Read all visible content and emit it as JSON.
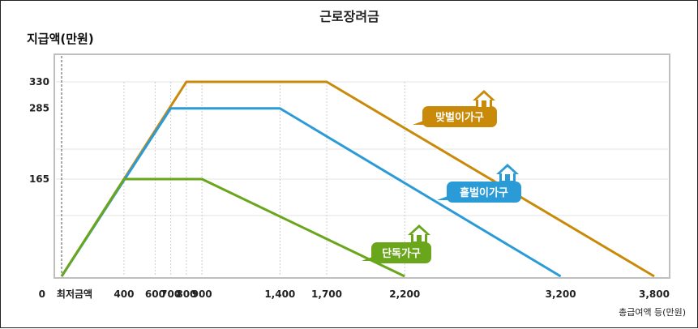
{
  "chart_data": {
    "type": "line",
    "title": "근로장려금",
    "ylabel": "지급액(만원)",
    "xlabel": "총급여액 등(만원)",
    "x_ticks": [
      {
        "value": 0,
        "label": "최저금액"
      },
      {
        "value": 400,
        "label": "400"
      },
      {
        "value": 600,
        "label": "600"
      },
      {
        "value": 700,
        "label": "700"
      },
      {
        "value": 800,
        "label": "800"
      },
      {
        "value": 900,
        "label": "900"
      },
      {
        "value": 1400,
        "label": "1,400"
      },
      {
        "value": 1700,
        "label": "1,700"
      },
      {
        "value": 2200,
        "label": "2,200"
      },
      {
        "value": 3200,
        "label": "3,200"
      },
      {
        "value": 3800,
        "label": "3,800"
      }
    ],
    "y_ticks": [
      {
        "value": 0,
        "label": "0"
      },
      {
        "value": 165,
        "label": "165"
      },
      {
        "value": 285,
        "label": "285"
      },
      {
        "value": 330,
        "label": "330"
      }
    ],
    "xlim": [
      0,
      3850
    ],
    "ylim": [
      0,
      375
    ],
    "grid": true,
    "series": [
      {
        "name": "맞벌이가구",
        "color": "#c98a0a",
        "points": [
          [
            0,
            0
          ],
          [
            800,
            330
          ],
          [
            1700,
            330
          ],
          [
            3800,
            0
          ]
        ],
        "icon": "house-icon"
      },
      {
        "name": "홑벌이가구",
        "color": "#2a9bd6",
        "points": [
          [
            0,
            0
          ],
          [
            700,
            285
          ],
          [
            1400,
            285
          ],
          [
            3200,
            0
          ]
        ],
        "icon": "house-icon"
      },
      {
        "name": "단독가구",
        "color": "#6aa61c",
        "points": [
          [
            0,
            0
          ],
          [
            400,
            165
          ],
          [
            900,
            165
          ],
          [
            2200,
            0
          ]
        ],
        "icon": "house-icon"
      }
    ]
  }
}
